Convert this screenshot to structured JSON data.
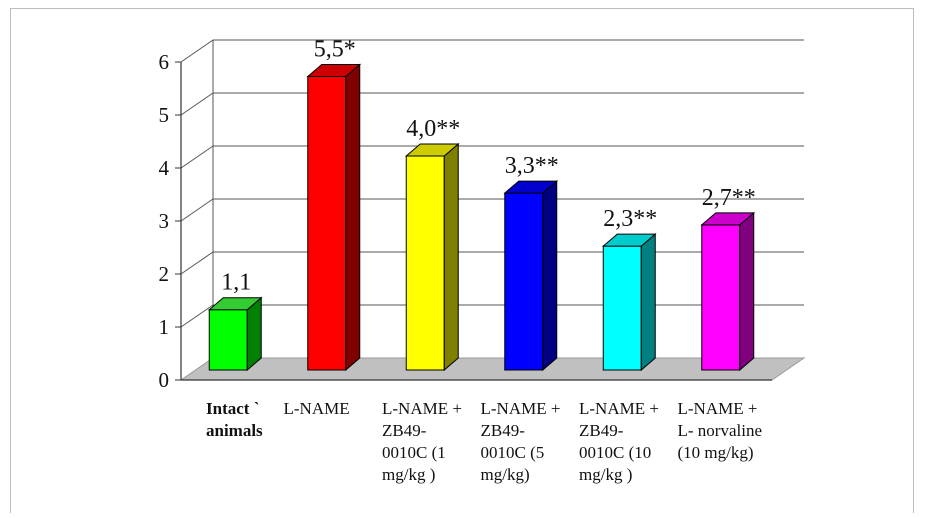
{
  "chart_data": {
    "type": "bar",
    "title": "",
    "xlabel": "",
    "ylabel": "",
    "ylim": [
      0,
      6
    ],
    "yticks": [
      "0",
      "1",
      "2",
      "3",
      "4",
      "5",
      "6"
    ],
    "grid": true,
    "legend": "none",
    "style": "3d-column",
    "categories": [
      "Intact ˋ\nanimals",
      "L-NAME",
      "L-NAME +\nZB49-\n0010C (1\nmg/kg )",
      "L-NAME +\nZB49-\n0010C (5\nmg/kg)",
      "L-NAME +\nZB49-\n0010C (10\nmg/kg )",
      "L-NAME +\nL- norvaline\n(10 mg/kg)"
    ],
    "values": [
      1.1,
      5.5,
      4.0,
      3.3,
      2.3,
      2.7
    ],
    "data_labels": [
      "1,1",
      "5,5*",
      "4,0**",
      "3,3**",
      "2,3**",
      "2,7**"
    ],
    "colors": [
      "#00ff00",
      "#ff0000",
      "#ffff00",
      "#0000ff",
      "#00ffff",
      "#ff00ff"
    ],
    "side_colors": [
      "#008000",
      "#800000",
      "#808000",
      "#000080",
      "#008080",
      "#800080"
    ],
    "top_colors": [
      "#33cc33",
      "#cc0000",
      "#cccc00",
      "#0000cc",
      "#00cccc",
      "#cc00cc"
    ]
  }
}
